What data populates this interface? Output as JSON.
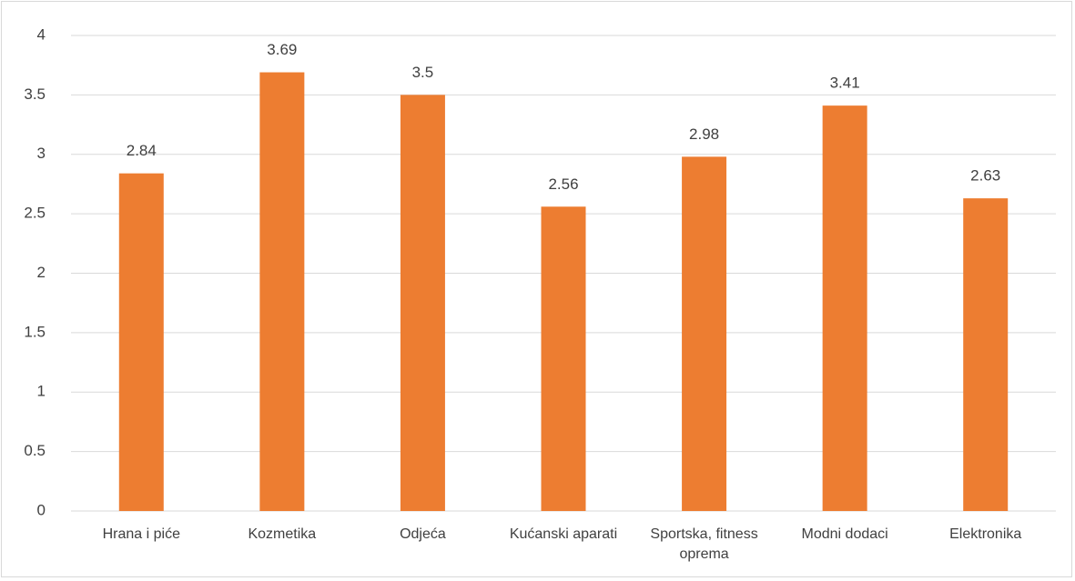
{
  "chart_data": {
    "type": "bar",
    "categories": [
      "Hrana i piće",
      "Kozmetika",
      "Odjeća",
      "Kućanski aparati",
      "Sportska, fitness oprema",
      "Modni dodaci",
      "Elektronika"
    ],
    "values": [
      2.84,
      3.69,
      3.5,
      2.56,
      2.98,
      3.41,
      2.63
    ],
    "color": "#ed7d31",
    "ylim": [
      0,
      4
    ],
    "yticks": [
      0,
      0.5,
      1,
      1.5,
      2,
      2.5,
      3,
      3.5,
      4
    ],
    "grid": true
  }
}
